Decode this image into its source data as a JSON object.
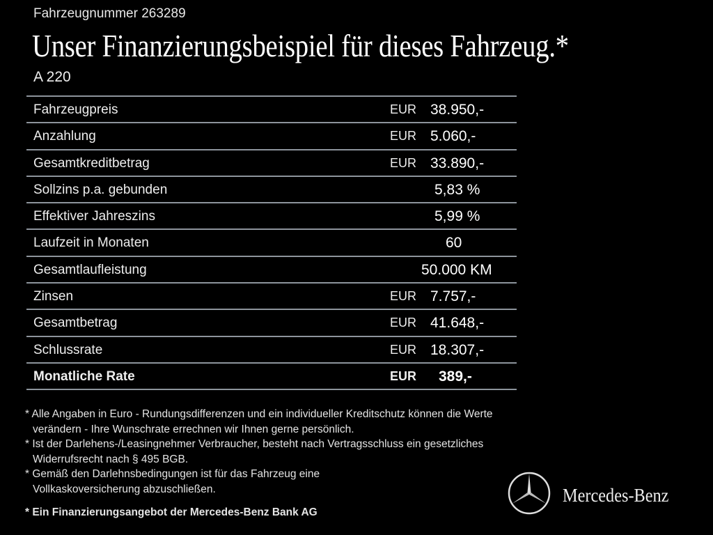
{
  "header": {
    "vehicle_number": "Fahrzeugnummer 263289",
    "title": "Unser Finanzierungsbeispiel für dieses Fahrzeug.*",
    "model": "A 220"
  },
  "table": {
    "rows": [
      {
        "label": "Fahrzeugpreis",
        "currency": "EUR",
        "value": "38.950,-"
      },
      {
        "label": "Anzahlung",
        "currency": "EUR",
        "value": "5.060,-"
      },
      {
        "label": "Gesamtkreditbetrag",
        "currency": "EUR",
        "value": "33.890,-"
      },
      {
        "label": "Sollzins p.a. gebunden",
        "currency": "",
        "value": "5,83 %"
      },
      {
        "label": "Effektiver Jahreszins",
        "currency": "",
        "value": "5,99 %"
      },
      {
        "label": "Laufzeit in Monaten",
        "currency": "",
        "value": "60"
      },
      {
        "label": "Gesamtlaufleistung",
        "currency": "",
        "value": "50.000 KM"
      },
      {
        "label": "Zinsen",
        "currency": "EUR",
        "value": "7.757,-"
      },
      {
        "label": "Gesamtbetrag",
        "currency": "EUR",
        "value": "41.648,-"
      },
      {
        "label": "Schlussrate",
        "currency": "EUR",
        "value": "18.307,-"
      },
      {
        "label": "Monatliche Rate",
        "currency": "EUR",
        "value": "389,-",
        "bold": true
      }
    ]
  },
  "footnotes": [
    "* Alle Angaben in Euro - Rundungsdifferenzen und ein individueller Kreditschutz können die Werte verändern - Ihre Wunschrate errechnen wir Ihnen gerne persönlich.",
    "* Ist der Darlehens-/Leasingnehmer Verbraucher, besteht nach Vertragsschluss ein gesetzliches Widerrufsrecht nach § 495 BGB.",
    "* Gemäß den Darlehnsbedingungen ist für das Fahrzeug eine Vollkaskoversicherung abzuschließen."
  ],
  "offer_note": "* Ein Finanzierungsangebot der Mercedes-Benz Bank AG",
  "brand": {
    "name": "Mercedes-Benz",
    "logo_icon": "three-pointed-star-icon"
  },
  "colors": {
    "background": "#000000",
    "divider": "#8d949c",
    "text": "#ffffff"
  }
}
